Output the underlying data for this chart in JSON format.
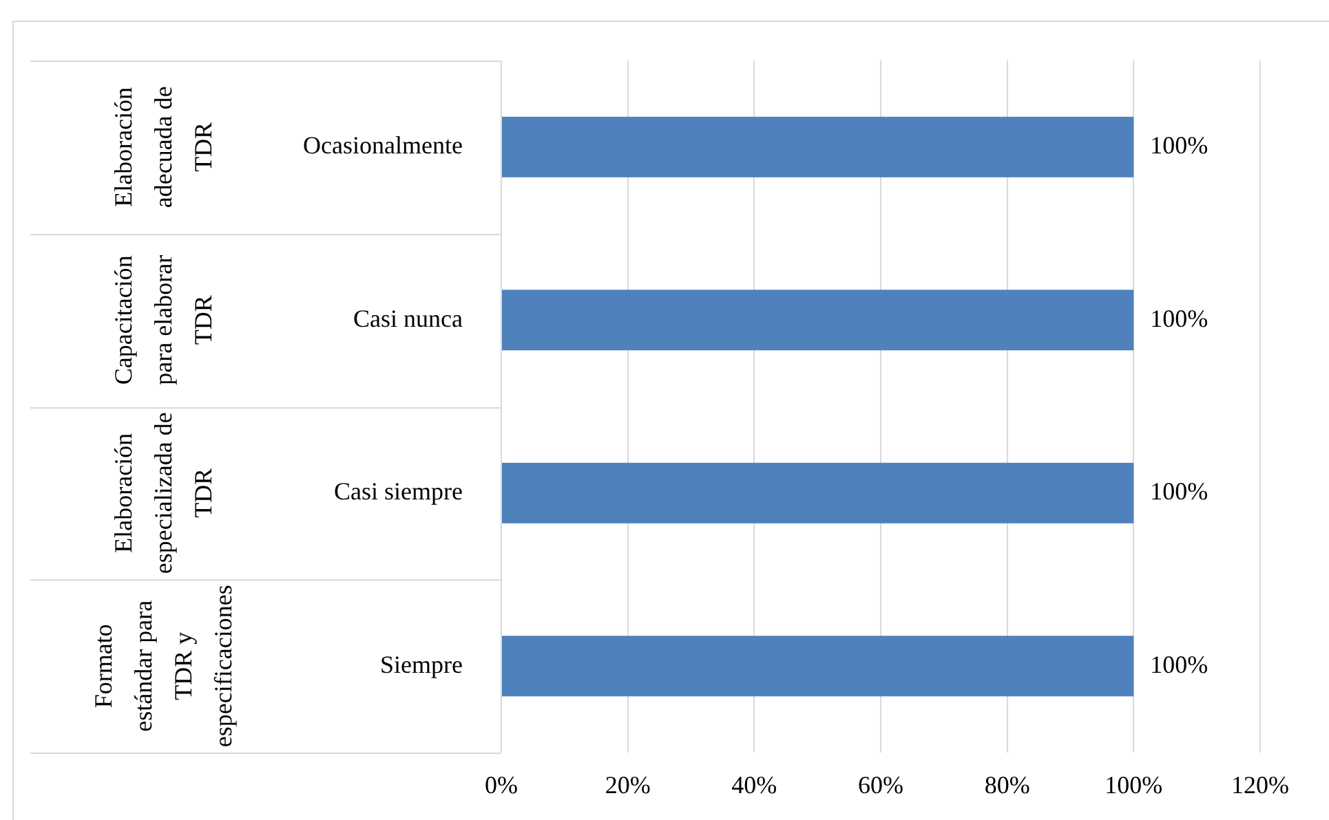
{
  "chart_data": {
    "type": "bar",
    "orientation": "horizontal",
    "categories": [
      "Ocasionalmente",
      "Casi nunca",
      "Casi siempre",
      "Siempre"
    ],
    "values": [
      100,
      100,
      100,
      100
    ],
    "color": "#4f81bd",
    "value_labels": [
      "100%",
      "100%",
      "100%",
      "100%"
    ],
    "annotations": [
      "Elaboración adecuada de TDR",
      "Capacitación para elaborar TDR",
      "Elaboración especializada de TDR",
      "Formato estándar para TDR y especificaciones"
    ],
    "xlim": [
      0,
      120
    ],
    "xticks": [
      {
        "value": 0,
        "label": "0%"
      },
      {
        "value": 20,
        "label": "20%"
      },
      {
        "value": 40,
        "label": "40%"
      },
      {
        "value": 60,
        "label": "60%"
      },
      {
        "value": 80,
        "label": "80%"
      },
      {
        "value": 100,
        "label": "100%"
      },
      {
        "value": 120,
        "label": "120%"
      }
    ],
    "grid": "x",
    "legend": false
  }
}
